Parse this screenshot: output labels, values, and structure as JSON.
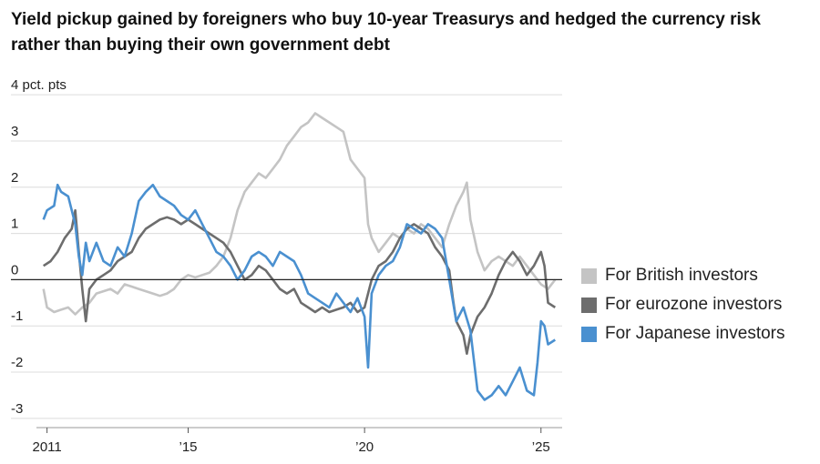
{
  "title": "Yield pickup gained by foreigners who buy 10-year Treasurys and hedged the currency risk rather than buying their own government debt",
  "chart_data": {
    "type": "line",
    "title": "Yield pickup gained by foreigners who buy 10-year Treasurys and hedged the currency risk rather than buying their own government debt",
    "unit_label": "4 pct. pts",
    "ylim": [
      -3.2,
      4.2
    ],
    "xlim": [
      2010.7,
      2025.6
    ],
    "y_ticks": [
      {
        "value": 4,
        "label": "4 pct. pts"
      },
      {
        "value": 3,
        "label": "3"
      },
      {
        "value": 2,
        "label": "2"
      },
      {
        "value": 1,
        "label": "1"
      },
      {
        "value": 0,
        "label": "0"
      },
      {
        "value": -1,
        "label": "-1"
      },
      {
        "value": -2,
        "label": "-2"
      },
      {
        "value": -3,
        "label": "-3"
      }
    ],
    "x_ticks": [
      {
        "value": 2011,
        "label": "2011"
      },
      {
        "value": 2015,
        "label": "’15"
      },
      {
        "value": 2020,
        "label": "’20"
      },
      {
        "value": 2025,
        "label": "’25"
      }
    ],
    "grid": true,
    "legend_position": "right",
    "series": [
      {
        "name": "For British investors",
        "color": "#c4c4c4",
        "points": [
          [
            2010.9,
            -0.2
          ],
          [
            2011.0,
            -0.6
          ],
          [
            2011.2,
            -0.7
          ],
          [
            2011.4,
            -0.65
          ],
          [
            2011.6,
            -0.6
          ],
          [
            2011.8,
            -0.75
          ],
          [
            2012.0,
            -0.6
          ],
          [
            2012.2,
            -0.5
          ],
          [
            2012.4,
            -0.3
          ],
          [
            2012.6,
            -0.25
          ],
          [
            2012.8,
            -0.2
          ],
          [
            2013.0,
            -0.3
          ],
          [
            2013.2,
            -0.1
          ],
          [
            2013.4,
            -0.15
          ],
          [
            2013.6,
            -0.2
          ],
          [
            2013.8,
            -0.25
          ],
          [
            2014.0,
            -0.3
          ],
          [
            2014.2,
            -0.35
          ],
          [
            2014.4,
            -0.3
          ],
          [
            2014.6,
            -0.2
          ],
          [
            2014.8,
            0.0
          ],
          [
            2015.0,
            0.1
          ],
          [
            2015.2,
            0.05
          ],
          [
            2015.4,
            0.1
          ],
          [
            2015.6,
            0.15
          ],
          [
            2015.8,
            0.3
          ],
          [
            2016.0,
            0.5
          ],
          [
            2016.2,
            0.9
          ],
          [
            2016.4,
            1.5
          ],
          [
            2016.6,
            1.9
          ],
          [
            2016.8,
            2.1
          ],
          [
            2017.0,
            2.3
          ],
          [
            2017.2,
            2.2
          ],
          [
            2017.4,
            2.4
          ],
          [
            2017.6,
            2.6
          ],
          [
            2017.8,
            2.9
          ],
          [
            2018.0,
            3.1
          ],
          [
            2018.2,
            3.3
          ],
          [
            2018.4,
            3.4
          ],
          [
            2018.6,
            3.6
          ],
          [
            2018.8,
            3.5
          ],
          [
            2019.0,
            3.4
          ],
          [
            2019.2,
            3.3
          ],
          [
            2019.4,
            3.2
          ],
          [
            2019.6,
            2.6
          ],
          [
            2019.8,
            2.4
          ],
          [
            2020.0,
            2.2
          ],
          [
            2020.1,
            1.2
          ],
          [
            2020.2,
            0.9
          ],
          [
            2020.4,
            0.6
          ],
          [
            2020.6,
            0.8
          ],
          [
            2020.8,
            1.0
          ],
          [
            2021.0,
            0.9
          ],
          [
            2021.2,
            1.1
          ],
          [
            2021.4,
            1.0
          ],
          [
            2021.6,
            1.2
          ],
          [
            2021.8,
            1.1
          ],
          [
            2022.0,
            0.9
          ],
          [
            2022.2,
            0.7
          ],
          [
            2022.4,
            1.2
          ],
          [
            2022.6,
            1.6
          ],
          [
            2022.8,
            1.9
          ],
          [
            2022.9,
            2.1
          ],
          [
            2023.0,
            1.3
          ],
          [
            2023.2,
            0.6
          ],
          [
            2023.4,
            0.2
          ],
          [
            2023.6,
            0.4
          ],
          [
            2023.8,
            0.5
          ],
          [
            2024.0,
            0.4
          ],
          [
            2024.2,
            0.3
          ],
          [
            2024.4,
            0.5
          ],
          [
            2024.6,
            0.3
          ],
          [
            2024.8,
            0.1
          ],
          [
            2025.0,
            -0.1
          ],
          [
            2025.2,
            -0.2
          ],
          [
            2025.4,
            0.0
          ]
        ]
      },
      {
        "name": "For eurozone investors",
        "color": "#6d6d6d",
        "points": [
          [
            2010.9,
            0.3
          ],
          [
            2011.1,
            0.4
          ],
          [
            2011.3,
            0.6
          ],
          [
            2011.5,
            0.9
          ],
          [
            2011.7,
            1.1
          ],
          [
            2011.8,
            1.5
          ],
          [
            2011.9,
            0.6
          ],
          [
            2012.0,
            -0.2
          ],
          [
            2012.1,
            -0.9
          ],
          [
            2012.2,
            -0.2
          ],
          [
            2012.4,
            0.0
          ],
          [
            2012.6,
            0.1
          ],
          [
            2012.8,
            0.2
          ],
          [
            2013.0,
            0.4
          ],
          [
            2013.2,
            0.5
          ],
          [
            2013.4,
            0.6
          ],
          [
            2013.6,
            0.9
          ],
          [
            2013.8,
            1.1
          ],
          [
            2014.0,
            1.2
          ],
          [
            2014.2,
            1.3
          ],
          [
            2014.4,
            1.35
          ],
          [
            2014.6,
            1.3
          ],
          [
            2014.8,
            1.2
          ],
          [
            2015.0,
            1.3
          ],
          [
            2015.2,
            1.2
          ],
          [
            2015.4,
            1.1
          ],
          [
            2015.6,
            1.0
          ],
          [
            2015.8,
            0.9
          ],
          [
            2016.0,
            0.8
          ],
          [
            2016.2,
            0.6
          ],
          [
            2016.4,
            0.3
          ],
          [
            2016.6,
            0.0
          ],
          [
            2016.8,
            0.1
          ],
          [
            2017.0,
            0.3
          ],
          [
            2017.2,
            0.2
          ],
          [
            2017.4,
            0.0
          ],
          [
            2017.6,
            -0.2
          ],
          [
            2017.8,
            -0.3
          ],
          [
            2018.0,
            -0.2
          ],
          [
            2018.2,
            -0.5
          ],
          [
            2018.4,
            -0.6
          ],
          [
            2018.6,
            -0.7
          ],
          [
            2018.8,
            -0.6
          ],
          [
            2019.0,
            -0.7
          ],
          [
            2019.2,
            -0.65
          ],
          [
            2019.4,
            -0.6
          ],
          [
            2019.6,
            -0.5
          ],
          [
            2019.8,
            -0.7
          ],
          [
            2020.0,
            -0.6
          ],
          [
            2020.1,
            -0.3
          ],
          [
            2020.2,
            0.0
          ],
          [
            2020.4,
            0.3
          ],
          [
            2020.6,
            0.4
          ],
          [
            2020.8,
            0.6
          ],
          [
            2021.0,
            0.9
          ],
          [
            2021.2,
            1.1
          ],
          [
            2021.4,
            1.2
          ],
          [
            2021.6,
            1.1
          ],
          [
            2021.8,
            1.0
          ],
          [
            2022.0,
            0.7
          ],
          [
            2022.2,
            0.5
          ],
          [
            2022.4,
            0.2
          ],
          [
            2022.5,
            -0.4
          ],
          [
            2022.6,
            -0.9
          ],
          [
            2022.8,
            -1.2
          ],
          [
            2022.9,
            -1.6
          ],
          [
            2023.0,
            -1.2
          ],
          [
            2023.2,
            -0.8
          ],
          [
            2023.4,
            -0.6
          ],
          [
            2023.6,
            -0.3
          ],
          [
            2023.8,
            0.1
          ],
          [
            2024.0,
            0.4
          ],
          [
            2024.2,
            0.6
          ],
          [
            2024.4,
            0.4
          ],
          [
            2024.6,
            0.1
          ],
          [
            2024.8,
            0.3
          ],
          [
            2025.0,
            0.6
          ],
          [
            2025.1,
            0.3
          ],
          [
            2025.2,
            -0.5
          ],
          [
            2025.4,
            -0.6
          ]
        ]
      },
      {
        "name": "For Japanese investors",
        "color": "#4a90d0",
        "points": [
          [
            2010.9,
            1.3
          ],
          [
            2011.0,
            1.5
          ],
          [
            2011.2,
            1.6
          ],
          [
            2011.3,
            2.05
          ],
          [
            2011.4,
            1.9
          ],
          [
            2011.6,
            1.8
          ],
          [
            2011.8,
            1.2
          ],
          [
            2011.9,
            0.5
          ],
          [
            2012.0,
            0.1
          ],
          [
            2012.1,
            0.8
          ],
          [
            2012.2,
            0.4
          ],
          [
            2012.4,
            0.8
          ],
          [
            2012.6,
            0.4
          ],
          [
            2012.8,
            0.3
          ],
          [
            2013.0,
            0.7
          ],
          [
            2013.2,
            0.5
          ],
          [
            2013.4,
            1.0
          ],
          [
            2013.6,
            1.7
          ],
          [
            2013.8,
            1.9
          ],
          [
            2014.0,
            2.05
          ],
          [
            2014.2,
            1.8
          ],
          [
            2014.4,
            1.7
          ],
          [
            2014.6,
            1.6
          ],
          [
            2014.8,
            1.4
          ],
          [
            2015.0,
            1.3
          ],
          [
            2015.2,
            1.5
          ],
          [
            2015.4,
            1.2
          ],
          [
            2015.6,
            0.9
          ],
          [
            2015.8,
            0.6
          ],
          [
            2016.0,
            0.5
          ],
          [
            2016.2,
            0.3
          ],
          [
            2016.4,
            0.0
          ],
          [
            2016.6,
            0.2
          ],
          [
            2016.8,
            0.5
          ],
          [
            2017.0,
            0.6
          ],
          [
            2017.2,
            0.5
          ],
          [
            2017.4,
            0.3
          ],
          [
            2017.6,
            0.6
          ],
          [
            2017.8,
            0.5
          ],
          [
            2018.0,
            0.4
          ],
          [
            2018.2,
            0.1
          ],
          [
            2018.4,
            -0.3
          ],
          [
            2018.6,
            -0.4
          ],
          [
            2018.8,
            -0.5
          ],
          [
            2019.0,
            -0.6
          ],
          [
            2019.2,
            -0.3
          ],
          [
            2019.4,
            -0.5
          ],
          [
            2019.6,
            -0.7
          ],
          [
            2019.8,
            -0.4
          ],
          [
            2020.0,
            -0.8
          ],
          [
            2020.1,
            -1.9
          ],
          [
            2020.2,
            -0.3
          ],
          [
            2020.4,
            0.1
          ],
          [
            2020.6,
            0.3
          ],
          [
            2020.8,
            0.4
          ],
          [
            2021.0,
            0.7
          ],
          [
            2021.2,
            1.2
          ],
          [
            2021.4,
            1.1
          ],
          [
            2021.6,
            1.0
          ],
          [
            2021.8,
            1.2
          ],
          [
            2022.0,
            1.1
          ],
          [
            2022.2,
            0.9
          ],
          [
            2022.4,
            0.0
          ],
          [
            2022.6,
            -0.9
          ],
          [
            2022.8,
            -0.6
          ],
          [
            2023.0,
            -1.1
          ],
          [
            2023.2,
            -2.4
          ],
          [
            2023.4,
            -2.6
          ],
          [
            2023.6,
            -2.5
          ],
          [
            2023.8,
            -2.3
          ],
          [
            2024.0,
            -2.5
          ],
          [
            2024.2,
            -2.2
          ],
          [
            2024.4,
            -1.9
          ],
          [
            2024.6,
            -2.4
          ],
          [
            2024.8,
            -2.5
          ],
          [
            2024.9,
            -1.8
          ],
          [
            2025.0,
            -0.9
          ],
          [
            2025.1,
            -1.0
          ],
          [
            2025.2,
            -1.4
          ],
          [
            2025.4,
            -1.3
          ]
        ]
      }
    ]
  }
}
